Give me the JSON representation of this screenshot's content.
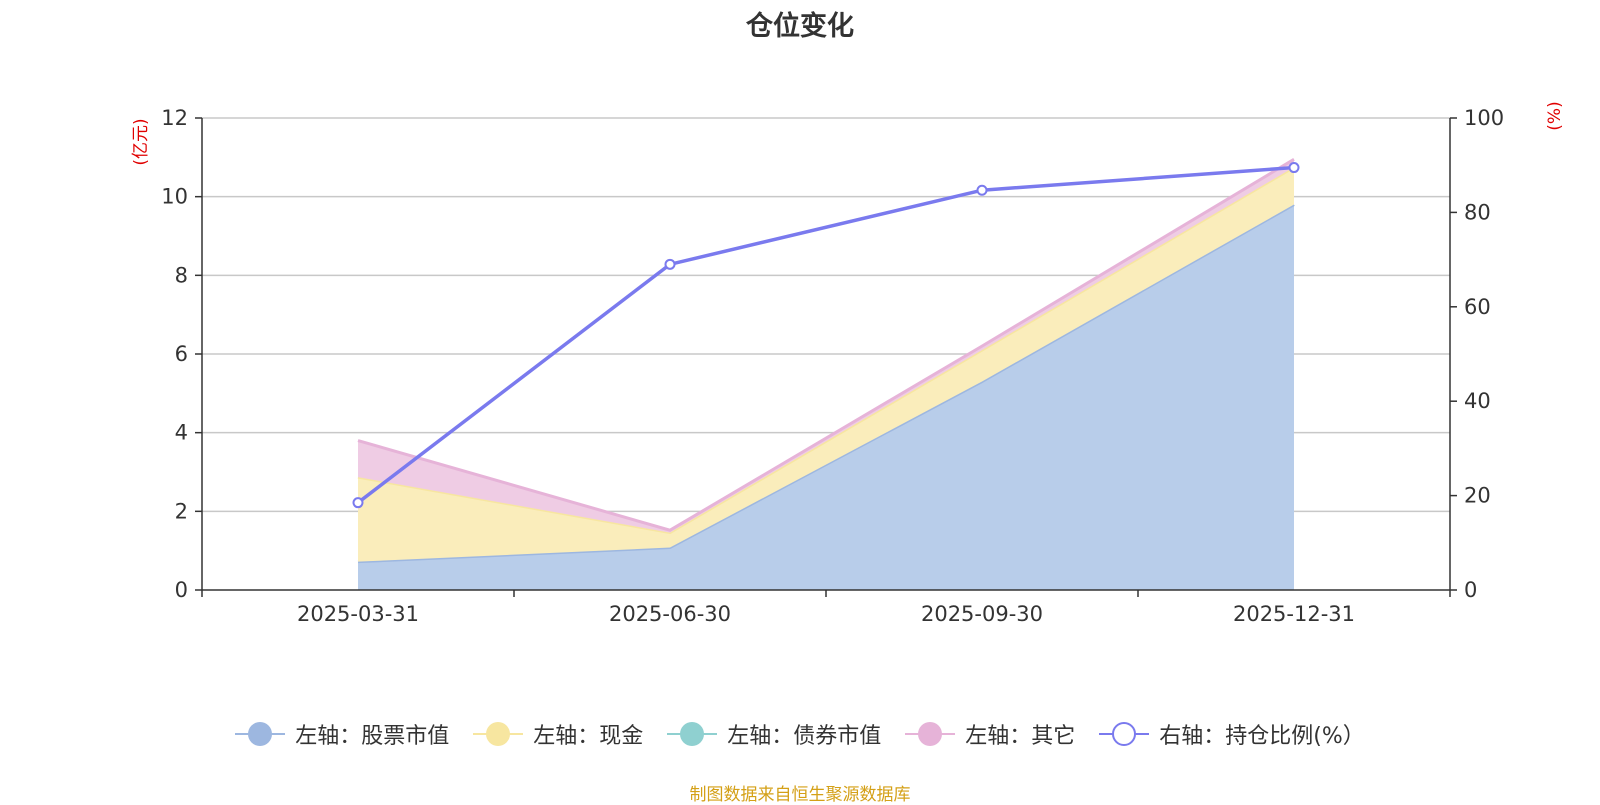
{
  "chart_data": {
    "type": "area",
    "title": "仓位变化",
    "categories": [
      "2025-03-31",
      "2025-06-30",
      "2025-09-30",
      "2025-12-31"
    ],
    "left_axis": {
      "unit": "(亿元)",
      "min": 0,
      "max": 12,
      "ticks": [
        "0",
        "2",
        "4",
        "6",
        "8",
        "10",
        "12"
      ]
    },
    "right_axis": {
      "unit": "(%)",
      "min": 0,
      "max": 100,
      "ticks": [
        "0",
        "20",
        "40",
        "60",
        "80",
        "100"
      ]
    },
    "series": [
      {
        "name": "左轴：股票市值",
        "axis": "left",
        "stacked": true,
        "color": "#9db7e0",
        "fill": "#b8cdea",
        "values": [
          0.72,
          1.08,
          5.3,
          9.8
        ]
      },
      {
        "name": "左轴：现金",
        "axis": "left",
        "stacked": true,
        "color": "#f7e6a0",
        "fill": "#faedbb",
        "values": [
          2.15,
          0.38,
          0.8,
          0.95
        ]
      },
      {
        "name": "左轴：债券市值",
        "axis": "left",
        "stacked": true,
        "color": "#8fd0d0",
        "fill": "#a8dcdc",
        "values": [
          0,
          0,
          0,
          0
        ]
      },
      {
        "name": "左轴：其它",
        "axis": "left",
        "stacked": true,
        "color": "#e6b3d8",
        "fill": "#efcce4",
        "values": [
          0.93,
          0.06,
          0.1,
          0.2
        ]
      },
      {
        "name": "右轴：持仓比例(%）",
        "axis": "right",
        "type": "line",
        "color": "#7a7aee",
        "values": [
          18.5,
          69.0,
          84.7,
          89.5
        ]
      }
    ],
    "grid": true,
    "legend_position": "bottom",
    "source": "制图数据来自恒生聚源数据库"
  }
}
